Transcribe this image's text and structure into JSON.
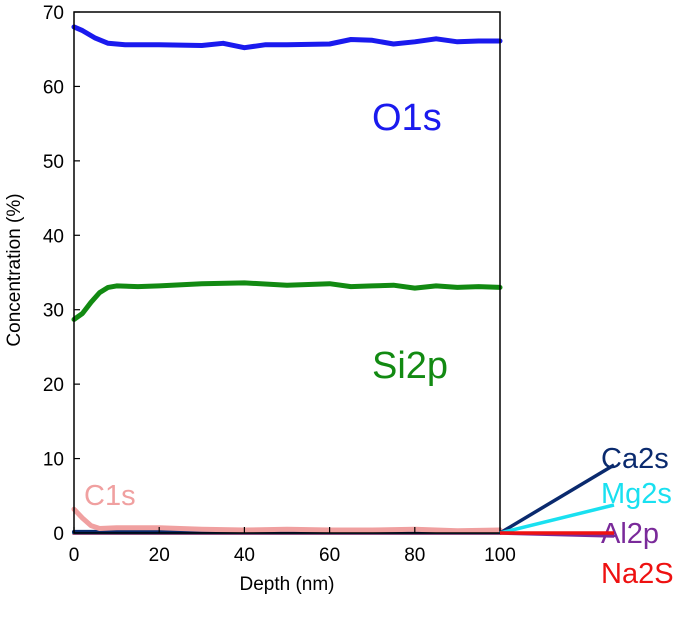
{
  "chart_data": {
    "type": "line",
    "title": "",
    "xlabel": "Depth (nm)",
    "ylabel": "Concentration (%)",
    "xlim": [
      0,
      100
    ],
    "ylim": [
      0,
      70
    ],
    "x_ticks": [
      "0",
      "20",
      "40",
      "60",
      "80",
      "100"
    ],
    "y_ticks": [
      "0",
      "10",
      "20",
      "30",
      "40",
      "50",
      "60",
      "70"
    ],
    "series": [
      {
        "name": "O1s",
        "label": "O1s",
        "color": "#1a1aee",
        "x": [
          0,
          2,
          5,
          8,
          12,
          20,
          30,
          35,
          40,
          45,
          50,
          60,
          65,
          70,
          75,
          80,
          85,
          90,
          95,
          100
        ],
        "values": [
          68,
          67.5,
          66.5,
          65.8,
          65.6,
          65.6,
          65.5,
          65.8,
          65.2,
          65.6,
          65.6,
          65.7,
          66.3,
          66.2,
          65.7,
          66,
          66.4,
          66,
          66.1,
          66.1
        ]
      },
      {
        "name": "Si2p",
        "label": "Si2p",
        "color": "#128a12",
        "x": [
          0,
          2,
          4,
          6,
          8,
          10,
          15,
          20,
          30,
          40,
          50,
          60,
          65,
          70,
          75,
          80,
          85,
          90,
          95,
          100
        ],
        "values": [
          28.7,
          29.5,
          31,
          32.3,
          33,
          33.2,
          33.1,
          33.2,
          33.5,
          33.6,
          33.3,
          33.5,
          33.1,
          33.2,
          33.3,
          32.9,
          33.2,
          33,
          33.1,
          33
        ]
      },
      {
        "name": "C1s",
        "label": "C1s",
        "color": "#f0a0a0",
        "x": [
          0,
          2,
          4,
          6,
          10,
          20,
          30,
          40,
          50,
          60,
          70,
          80,
          90,
          100
        ],
        "values": [
          3.2,
          2,
          1,
          0.6,
          0.7,
          0.7,
          0.5,
          0.4,
          0.5,
          0.4,
          0.4,
          0.5,
          0.3,
          0.4
        ]
      },
      {
        "name": "Ca2s",
        "label": "Ca2s",
        "color": "#0a2a6e",
        "x": [
          0,
          100
        ],
        "values": [
          0.15,
          0.15
        ]
      },
      {
        "name": "Mg2s",
        "label": "Mg2s",
        "color": "#19e0f0",
        "x": [
          0,
          100
        ],
        "values": [
          0.1,
          0.1
        ]
      },
      {
        "name": "Al2p",
        "label": "Al2p",
        "color": "#7a2a9a",
        "x": [
          0,
          100
        ],
        "values": [
          0.05,
          0.05
        ]
      },
      {
        "name": "Na2S",
        "label": "Na2S",
        "color": "#ee1111",
        "x": [
          0,
          100
        ],
        "values": [
          0,
          0
        ]
      }
    ],
    "legend": "right-bottom, outside plot with leader lines",
    "grid": false
  }
}
